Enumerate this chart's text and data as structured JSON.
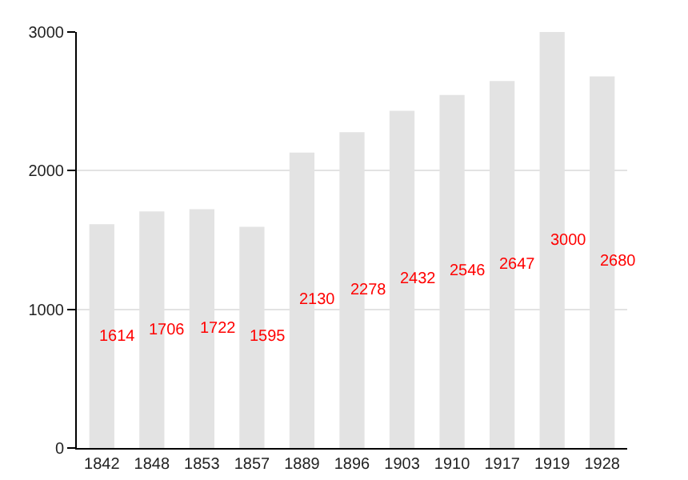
{
  "chart_data": {
    "type": "bar",
    "categories": [
      "1842",
      "1848",
      "1853",
      "1857",
      "1889",
      "1896",
      "1903",
      "1910",
      "1917",
      "1919",
      "1928"
    ],
    "values": [
      1614,
      1706,
      1722,
      1595,
      2130,
      2278,
      2432,
      2546,
      2647,
      3000,
      2680
    ],
    "color": "#e3e3e3",
    "ylim": [
      0,
      3000
    ],
    "yticks": [
      0,
      1000,
      2000,
      3000
    ],
    "grid": "y",
    "data_labels": true
  }
}
